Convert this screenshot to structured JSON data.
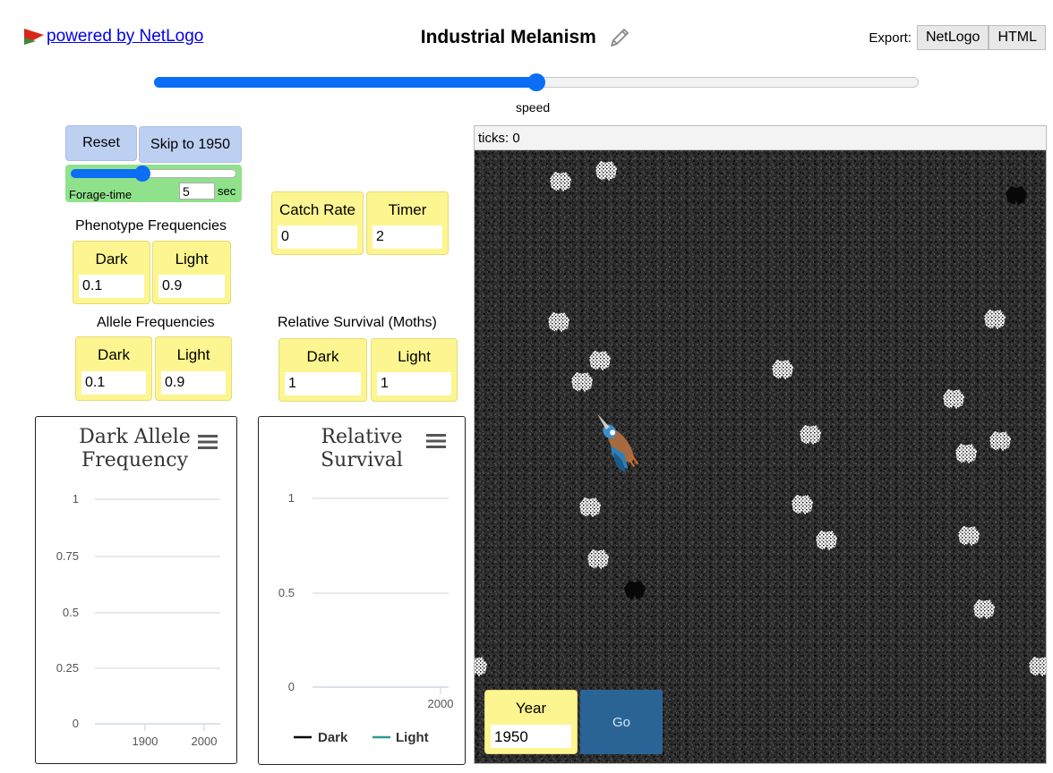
{
  "header": {
    "logo_text": "powered by NetLogo",
    "title": "Industrial Melanism",
    "export_label": "Export:",
    "export_netlogo": "NetLogo",
    "export_html": "HTML"
  },
  "speed": {
    "label": "speed",
    "value": 0.5
  },
  "controls": {
    "reset_label": "Reset",
    "skip_label": "Skip to 1950",
    "forage_label": "Forage-time",
    "forage_value": "5",
    "forage_units": "sec",
    "forage_fraction": 0.43
  },
  "phenotype": {
    "title": "Phenotype Frequencies",
    "dark_label": "Dark",
    "dark_value": "0.1",
    "light_label": "Light",
    "light_value": "0.9"
  },
  "allele": {
    "title": "Allele Frequencies",
    "dark_label": "Dark",
    "dark_value": "0.1",
    "light_label": "Light",
    "light_value": "0.9"
  },
  "catch_rate": {
    "label": "Catch Rate",
    "value": "0"
  },
  "timer": {
    "label": "Timer",
    "value": "2"
  },
  "survival": {
    "title": "Relative Survival (Moths)",
    "dark_label": "Dark",
    "dark_value": "1",
    "light_label": "Light",
    "light_value": "1"
  },
  "plot_allele": {
    "title_line1": "Dark Allele",
    "title_line2": "Frequency",
    "y_ticks": [
      "1",
      "0.75",
      "0.5",
      "0.25",
      "0"
    ],
    "x_ticks": [
      "1900",
      "2000"
    ]
  },
  "plot_survival": {
    "title_line1": "Relative",
    "title_line2": "Survival",
    "y_ticks": [
      "1",
      "0.5",
      "0"
    ],
    "x_ticks": [
      "2000"
    ],
    "legend": [
      {
        "name": "Dark",
        "color": "#000000"
      },
      {
        "name": "Light",
        "color": "#2a9d8f"
      }
    ]
  },
  "view": {
    "ticks_text": "ticks: 0"
  },
  "year": {
    "label": "Year",
    "value": "1950"
  },
  "go_label": "Go",
  "colors": {
    "accent": "#0b6ef5",
    "monitor": "#fdf58f",
    "button": "#bed0f2",
    "go": "#2a6496"
  }
}
